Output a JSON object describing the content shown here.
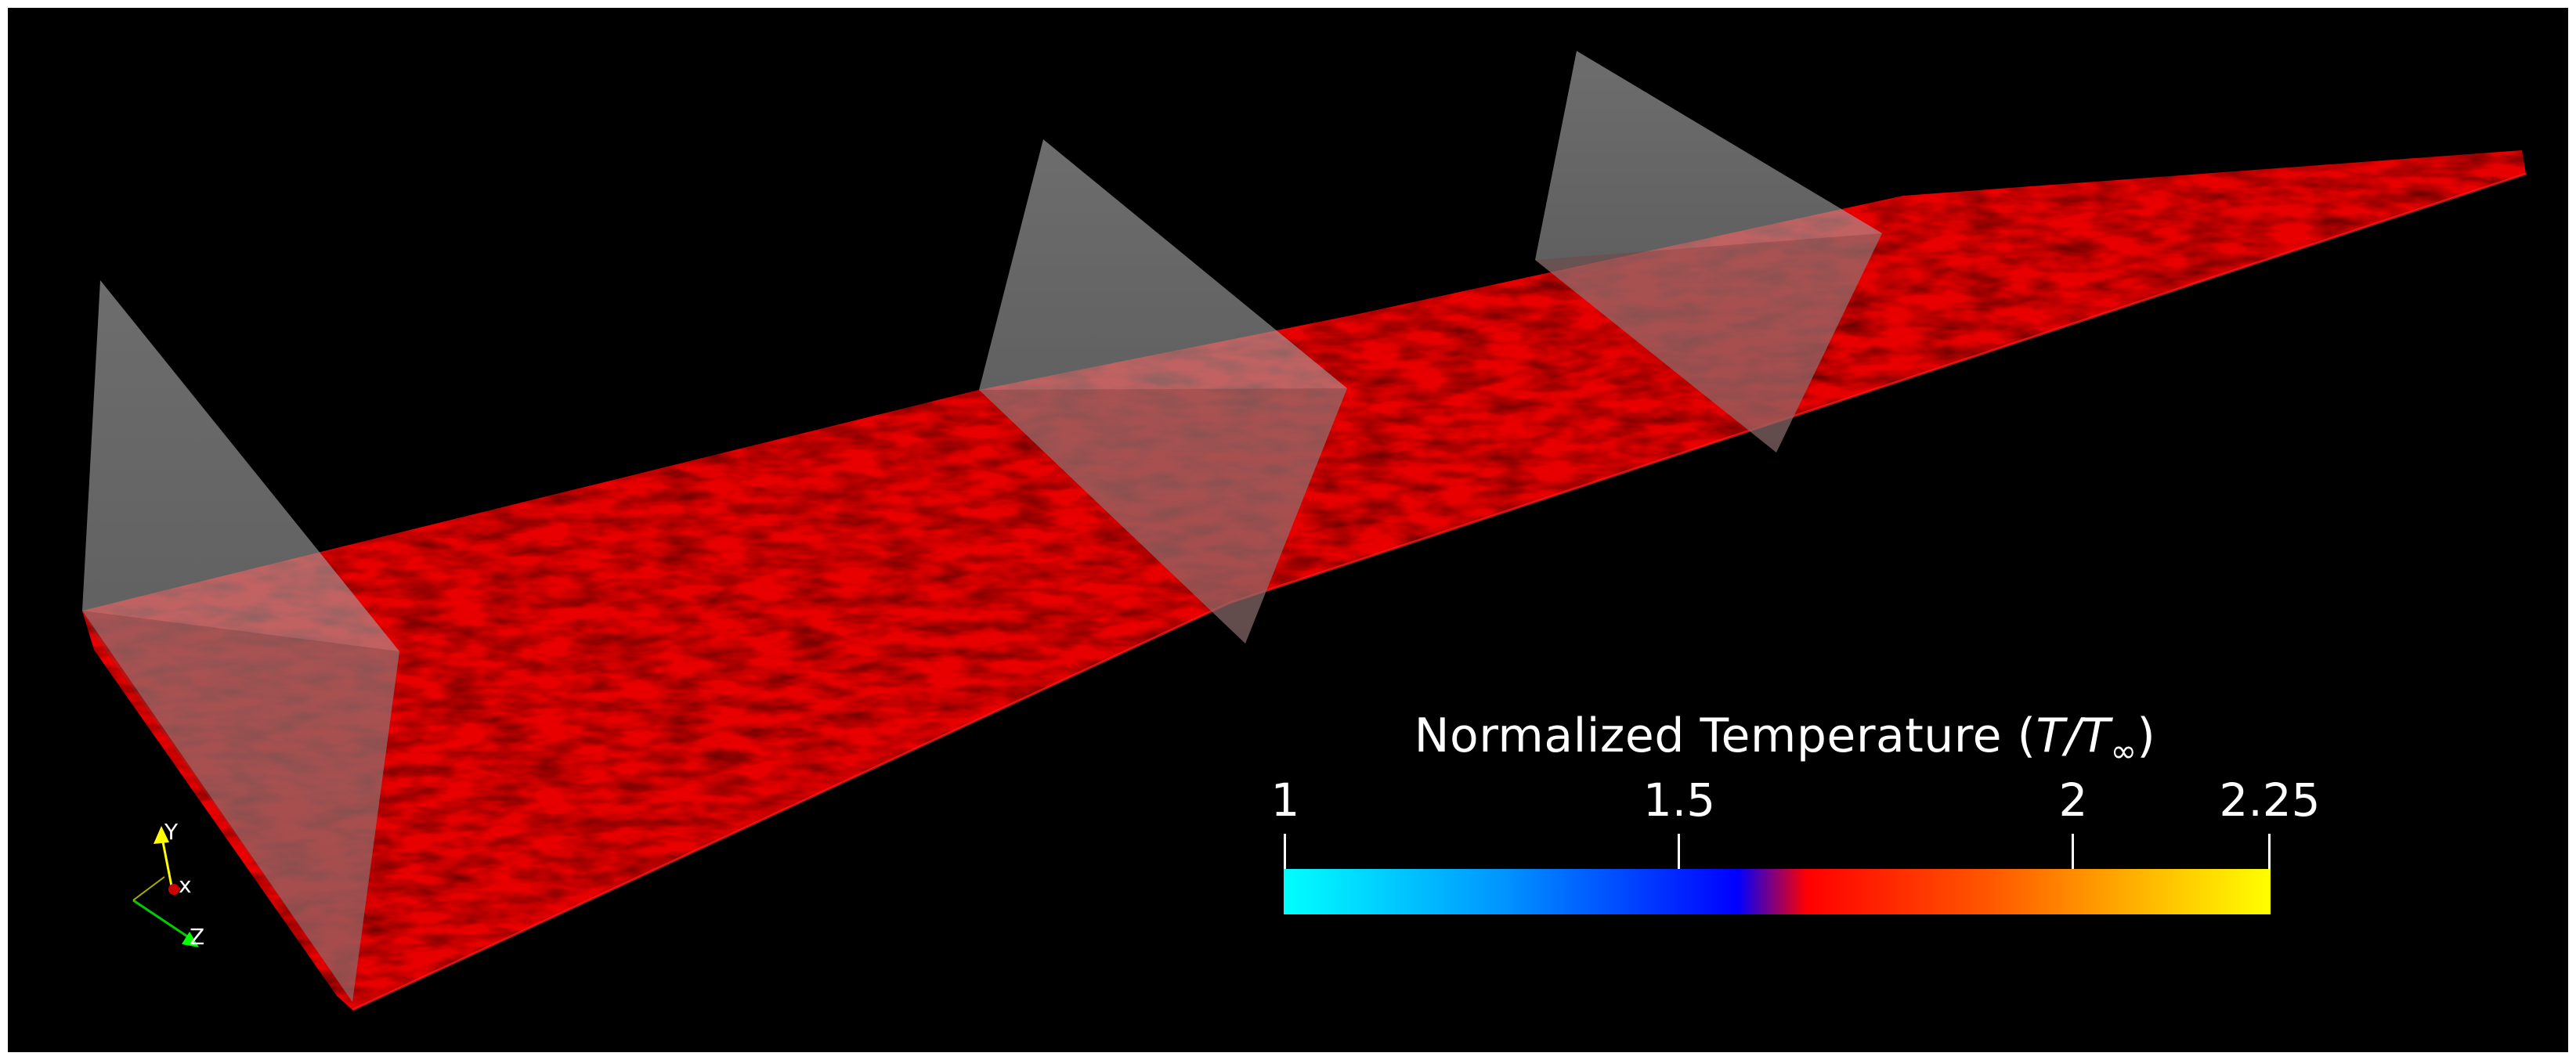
{
  "colorbar": {
    "title_prefix": "Normalized Temperature (",
    "title_symbol": "T/T",
    "title_sub": "∞",
    "title_suffix": ")",
    "ticks": [
      {
        "label": "1",
        "value": 1.0
      },
      {
        "label": "1.5",
        "value": 1.5
      },
      {
        "label": "2",
        "value": 2.0
      },
      {
        "label": "2.25",
        "value": 2.25
      }
    ],
    "range": [
      1.0,
      2.25
    ],
    "gradient_stops": [
      "#00ffff",
      "#0096ff",
      "#0000ff",
      "#ff0000",
      "#ff6600",
      "#ffcc00",
      "#ffff00"
    ]
  },
  "orientation_axes": {
    "y_label": "Y",
    "x_label": "x",
    "z_label": "Z",
    "y_color": "#ffff00",
    "x_color": "#ff0000",
    "z_color": "#00ff00"
  },
  "scene": {
    "surface_color": "#ee0000",
    "plane_color": "#aaaaaa",
    "plane_count": 3
  }
}
